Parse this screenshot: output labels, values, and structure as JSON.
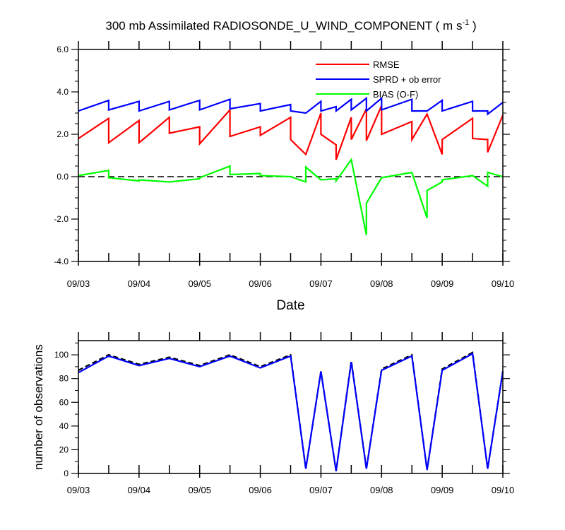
{
  "chart_data": [
    {
      "type": "line",
      "title": "300 mb Assimilated RADIOSONDE_U_WIND_COMPONENT ( m s",
      "title_sup": "-1",
      "title_end": " )",
      "xlabel": "Date",
      "ylabel": "",
      "xlim": [
        0,
        7
      ],
      "ylim": [
        -4.0,
        6.0
      ],
      "x_ticks": [
        0,
        1,
        2,
        3,
        4,
        5,
        6,
        7
      ],
      "x_tick_labels": [
        "09/03",
        "09/04",
        "09/05",
        "09/06",
        "09/07",
        "09/08",
        "09/09",
        "09/10"
      ],
      "y_ticks": [
        -4.0,
        -2.0,
        0.0,
        2.0,
        4.0,
        6.0
      ],
      "y_tick_labels": [
        "-4.0",
        "-2.0",
        "0.0",
        "2.0",
        "4.0",
        "6.0"
      ],
      "legend_position": "top-right",
      "reference_line": {
        "y": 0.0,
        "style": "dashed",
        "color": "#000000"
      },
      "series": [
        {
          "name": "RMSE",
          "color": "#ff0000",
          "x": [
            0.0,
            0.5,
            0.5,
            1.0,
            1.0,
            1.5,
            1.5,
            2.0,
            2.0,
            2.5,
            2.5,
            3.0,
            3.0,
            3.5,
            3.5,
            3.75,
            4.0,
            4.0,
            4.25,
            4.25,
            4.5,
            4.5,
            4.75,
            4.75,
            5.0,
            5.0,
            5.5,
            5.5,
            5.75,
            6.0,
            6.0,
            6.5,
            6.5,
            6.75,
            6.75,
            7.0
          ],
          "y": [
            1.8,
            2.75,
            1.6,
            2.65,
            1.6,
            2.8,
            2.05,
            2.35,
            1.55,
            3.15,
            1.9,
            2.35,
            1.95,
            2.8,
            1.75,
            1.05,
            3.0,
            2.0,
            1.5,
            0.8,
            2.8,
            1.75,
            3.2,
            1.7,
            3.35,
            2.0,
            2.6,
            1.75,
            2.95,
            1.05,
            1.75,
            2.75,
            1.8,
            1.75,
            1.15,
            2.9
          ]
        },
        {
          "name": "SPRD + ob error",
          "color": "#0000ff",
          "x": [
            0.0,
            0.5,
            0.5,
            1.0,
            1.0,
            1.5,
            1.5,
            2.0,
            2.0,
            2.5,
            2.5,
            3.0,
            3.0,
            3.5,
            3.5,
            3.75,
            4.0,
            4.0,
            4.25,
            4.25,
            4.5,
            4.5,
            4.75,
            4.75,
            5.0,
            5.0,
            5.5,
            5.5,
            5.75,
            6.0,
            6.0,
            6.5,
            6.5,
            6.75,
            6.75,
            7.0
          ],
          "y": [
            3.1,
            3.6,
            3.15,
            3.55,
            3.1,
            3.55,
            3.15,
            3.6,
            3.15,
            3.65,
            3.2,
            3.45,
            3.1,
            3.4,
            3.1,
            3.0,
            3.55,
            3.1,
            3.3,
            3.1,
            3.65,
            3.15,
            3.7,
            3.1,
            3.7,
            3.15,
            3.65,
            3.1,
            3.1,
            3.6,
            3.1,
            3.55,
            3.1,
            3.1,
            2.95,
            3.5
          ]
        },
        {
          "name": "BIAS (O-F)",
          "color": "#00ff00",
          "x": [
            0.0,
            0.5,
            0.5,
            1.0,
            1.0,
            1.5,
            2.0,
            2.0,
            2.5,
            2.5,
            3.0,
            3.0,
            3.5,
            3.75,
            3.75,
            4.0,
            4.25,
            4.25,
            4.5,
            4.75,
            4.75,
            5.0,
            5.0,
            5.5,
            5.75,
            5.75,
            6.0,
            6.0,
            6.5,
            6.75,
            6.75,
            7.0
          ],
          "y": [
            0.05,
            0.3,
            -0.05,
            -0.2,
            -0.15,
            -0.25,
            -0.1,
            -0.05,
            0.5,
            0.1,
            0.15,
            0.05,
            0.0,
            -0.25,
            0.45,
            -0.15,
            -0.1,
            -0.2,
            0.8,
            -2.75,
            -1.25,
            -0.05,
            -0.05,
            0.2,
            -1.95,
            -0.65,
            -0.25,
            -0.15,
            0.05,
            -0.45,
            0.2,
            0.0
          ]
        }
      ]
    },
    {
      "type": "line",
      "title": "",
      "xlabel": "",
      "ylabel": "number of observations",
      "xlim": [
        0,
        7
      ],
      "ylim": [
        0,
        112
      ],
      "x_ticks": [
        0,
        1,
        2,
        3,
        4,
        5,
        6,
        7
      ],
      "x_tick_labels": [
        "09/03",
        "09/04",
        "09/05",
        "09/06",
        "09/07",
        "09/08",
        "09/09",
        "09/10"
      ],
      "y_ticks": [
        0,
        20,
        40,
        60,
        80,
        100
      ],
      "y_tick_labels": [
        "0",
        "20",
        "40",
        "60",
        "80",
        "100"
      ],
      "series": [
        {
          "name": "number of observations (dashed)",
          "color": "#000000",
          "style": "dashed",
          "x": [
            0.0,
            0.5,
            1.0,
            1.5,
            2.0,
            2.5,
            3.0,
            3.5,
            3.75,
            4.0,
            4.25,
            4.5,
            4.75,
            5.0,
            5.5,
            5.75,
            6.0,
            6.5,
            6.75,
            7.0
          ],
          "y": [
            87,
            100,
            92,
            98,
            91,
            100,
            90,
            100,
            4,
            86,
            2,
            95,
            4,
            88,
            100,
            3,
            88,
            102,
            4,
            86
          ]
        },
        {
          "name": "number of observations",
          "color": "#0000ff",
          "style": "solid",
          "x": [
            0.0,
            0.5,
            1.0,
            1.5,
            2.0,
            2.5,
            3.0,
            3.5,
            3.75,
            4.0,
            4.25,
            4.5,
            4.75,
            5.0,
            5.5,
            5.75,
            6.0,
            6.5,
            6.75,
            7.0
          ],
          "y": [
            85,
            99,
            91,
            97,
            90,
            99,
            89,
            99,
            4,
            86,
            2,
            94,
            4,
            87,
            99,
            3,
            87,
            101,
            4,
            86
          ]
        }
      ]
    }
  ]
}
